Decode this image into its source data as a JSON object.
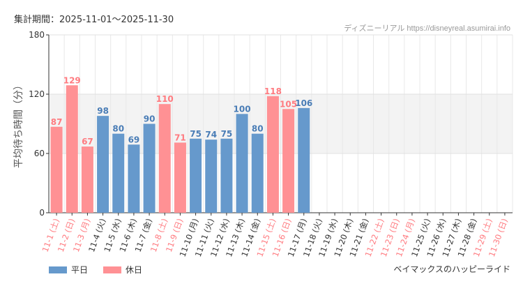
{
  "header": {
    "period": "集計期間：2025-11-01～2025-11-30",
    "credit": "ディズニーリアル https://disneyreal.asumirai.info"
  },
  "footer": {
    "ride": "ベイマックスのハッピーライド"
  },
  "colors": {
    "weekday": "#6699cc",
    "holiday": "#ff9194",
    "weekday_text": "#4a7db6",
    "holiday_text": "#ff7b80"
  },
  "chart_data": {
    "type": "bar",
    "ylabel": "平均待ち時間（分）",
    "ylim": [
      0,
      180
    ],
    "yticks": [
      0,
      60,
      120,
      180
    ],
    "shaded_band": [
      60,
      120
    ],
    "grid": true,
    "legend_placement": "bottom-left",
    "legend": [
      {
        "name": "平日",
        "key": "weekday"
      },
      {
        "name": "休日",
        "key": "holiday"
      }
    ],
    "categories": [
      "11-1 (土)",
      "11-2 (日)",
      "11-3 (月)",
      "11-4 (火)",
      "11-5 (水)",
      "11-6 (木)",
      "11-7 (金)",
      "11-8 (土)",
      "11-9 (日)",
      "11-10 (月)",
      "11-11 (火)",
      "11-12 (水)",
      "11-13 (木)",
      "11-14 (金)",
      "11-15 (土)",
      "11-16 (日)",
      "11-17 (月)",
      "11-18 (火)",
      "11-19 (水)",
      "11-20 (木)",
      "11-21 (金)",
      "11-22 (土)",
      "11-23 (日)",
      "11-24 (月)",
      "11-25 (火)",
      "11-26 (水)",
      "11-27 (木)",
      "11-28 (金)",
      "11-29 (土)",
      "11-30 (日)"
    ],
    "day_type": [
      "holiday",
      "holiday",
      "holiday",
      "weekday",
      "weekday",
      "weekday",
      "weekday",
      "holiday",
      "holiday",
      "weekday",
      "weekday",
      "weekday",
      "weekday",
      "weekday",
      "holiday",
      "holiday",
      "weekday",
      "weekday",
      "weekday",
      "weekday",
      "weekday",
      "holiday",
      "holiday",
      "holiday",
      "weekday",
      "weekday",
      "weekday",
      "weekday",
      "holiday",
      "holiday"
    ],
    "values": [
      87,
      129,
      67,
      98,
      80,
      69,
      90,
      110,
      71,
      75,
      74,
      75,
      100,
      80,
      118,
      105,
      106,
      null,
      null,
      null,
      null,
      null,
      null,
      null,
      null,
      null,
      null,
      null,
      null,
      null
    ]
  }
}
